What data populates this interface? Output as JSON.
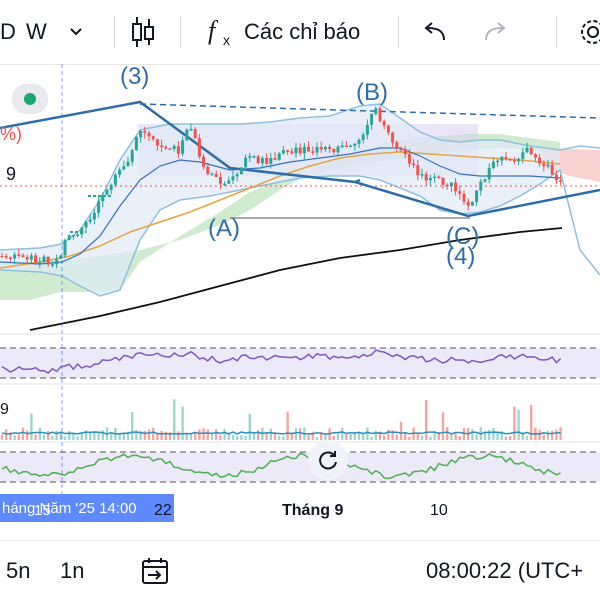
{
  "toolbar": {
    "symbol_fragment": "D",
    "interval": "W",
    "indicators_label": "Các chỉ báo"
  },
  "price_axis": {
    "fragment_pct": "%)",
    "fragment_9": "9"
  },
  "wave_labels": {
    "w3": "(3)",
    "wB": "(B)",
    "wA": "(A)",
    "wC": "(C)",
    "w4": "(4)"
  },
  "left_axis_fragment": "9",
  "time_axis": {
    "cursor": "háng Năm '25   14:00",
    "label_15": "15",
    "label_22": "22",
    "month_label": "Tháng 9",
    "label_10": "10"
  },
  "bottom": {
    "range_5n": "5n",
    "range_1n": "1n",
    "clock": "08:00:22 (UTC+"
  },
  "colors": {
    "up": "#26a69a",
    "down": "#ef5350",
    "wave": "#2f6da8",
    "accent": "#2962ff"
  }
}
